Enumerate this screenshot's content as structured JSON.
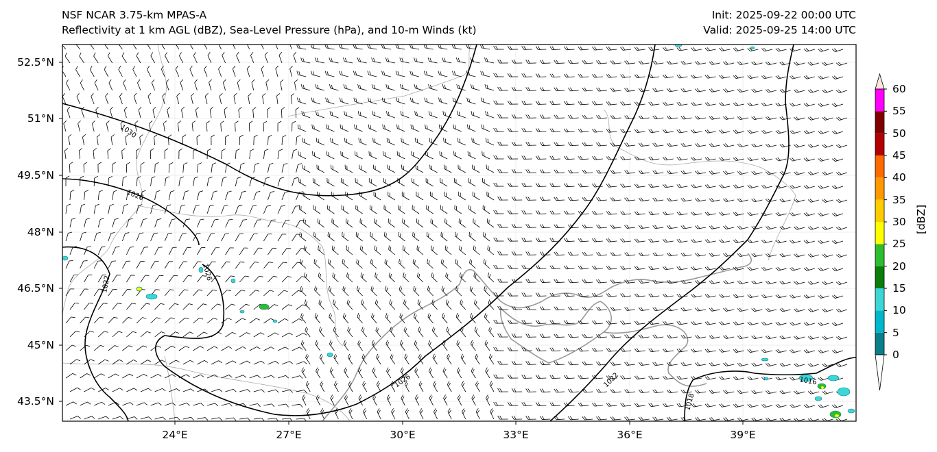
{
  "header": {
    "title_line1": "NSF NCAR 3.75-km MPAS-A",
    "title_line2": "Reflectivity at 1 km AGL (dBZ), Sea-Level Pressure (hPa), and 10-m Winds (kt)",
    "init": "Init: 2025-09-22 00:00 UTC",
    "valid": "Valid: 2025-09-25 14:00 UTC"
  },
  "axes": {
    "latitude_labels": [
      "52.5°N",
      "51°N",
      "49.5°N",
      "48°N",
      "46.5°N",
      "45°N",
      "43.5°N"
    ],
    "longitude_labels": [
      "24°E",
      "27°E",
      "30°E",
      "33°E",
      "36°E",
      "39°E"
    ]
  },
  "colorbar": {
    "label": "[dBZ]",
    "ticks": [
      "0",
      "5",
      "10",
      "15",
      "20",
      "25",
      "30",
      "35",
      "40",
      "45",
      "50",
      "55",
      "60"
    ],
    "colors": [
      "#087f8a",
      "#00b7cc",
      "#3cd6d6",
      "#0a7d0a",
      "#2ebd2e",
      "#ffff00",
      "#ffcc00",
      "#ff9900",
      "#ff6a00",
      "#b30000",
      "#800000",
      "#ff00ff",
      "#ffe4dc"
    ]
  },
  "isobars": {
    "labels": [
      "1030",
      "1026",
      "1026",
      "1022",
      "1026",
      "1022",
      "1018",
      "1016"
    ]
  }
}
